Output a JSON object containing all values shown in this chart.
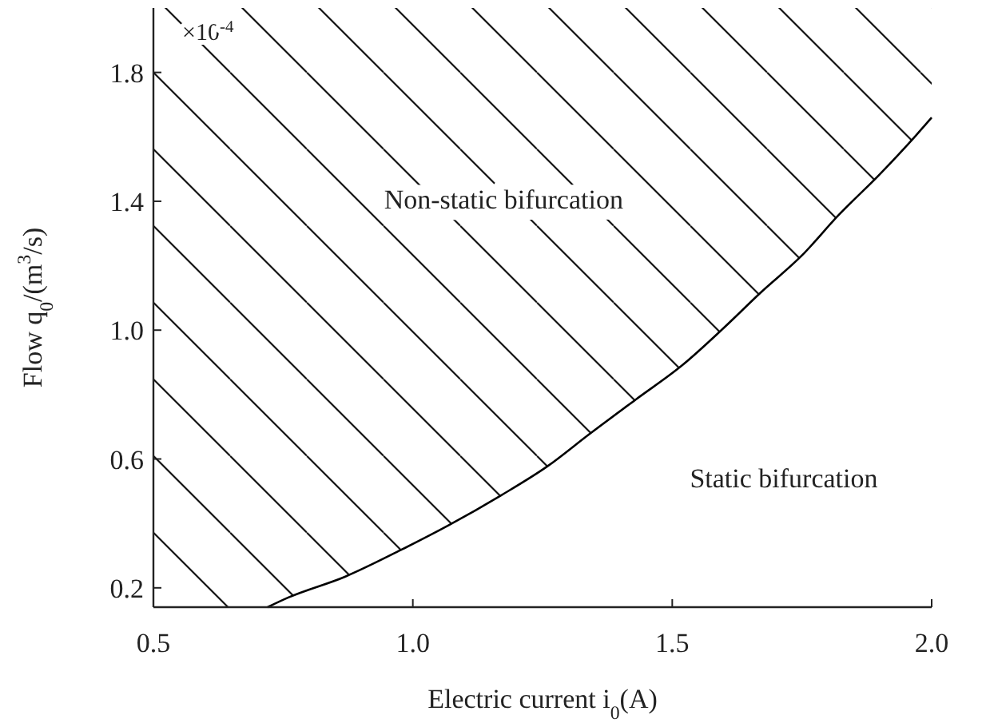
{
  "chart_data": {
    "type": "line",
    "xlabel": "Electric current i$_{0}$(A)",
    "ylabel": "Flow q$_{0}$/(m$^{3}$/s)",
    "x": [
      0.5,
      0.72,
      0.76,
      0.87,
      0.98,
      1.07,
      1.17,
      1.26,
      1.34,
      1.43,
      1.52,
      1.6,
      1.67,
      1.75,
      1.82,
      1.9,
      1.97,
      2.0
    ],
    "series": [
      {
        "color": "#000000",
        "values": [
          null,
          0.14,
          0.17,
          0.235,
          0.32,
          0.395,
          0.487,
          0.578,
          0.677,
          0.785,
          0.892,
          1.008,
          1.116,
          1.232,
          1.356,
          1.484,
          1.605,
          1.66
        ],
        "lower": [
          0.14,
          0.14,
          0.17,
          0.235,
          0.32,
          0.395,
          0.487,
          0.578,
          0.677,
          0.785,
          0.892,
          1.008,
          1.116,
          1.232,
          1.356,
          1.484,
          1.605,
          1.66
        ],
        "upper": [
          2.0,
          2.0,
          2.0,
          2.0,
          2.0,
          2.0,
          2.0,
          2.0,
          2.0,
          2.0,
          2.0,
          2.0,
          2.0,
          2.0,
          2.0,
          2.0,
          2.0,
          2.0
        ]
      }
    ],
    "xlim": [
      0.5,
      2.0
    ],
    "ylim": [
      0.14,
      2.0
    ],
    "xticks": [
      {
        "value": 0.5,
        "label": "0.5"
      },
      {
        "value": 1.0,
        "label": "1.0"
      },
      {
        "value": 1.5,
        "label": "1.5"
      },
      {
        "value": 2.0,
        "label": "2.0"
      }
    ],
    "yticks": [
      0.2,
      0.6,
      {
        "value": 1.0,
        "label": "1.0"
      },
      1.4,
      1.8
    ],
    "annotations": [
      "×10$^{-4}$",
      "Non-static bifurcation",
      "Static bifurcation"
    ],
    "grid": false,
    "marker": "none",
    "line_style": "solid"
  }
}
